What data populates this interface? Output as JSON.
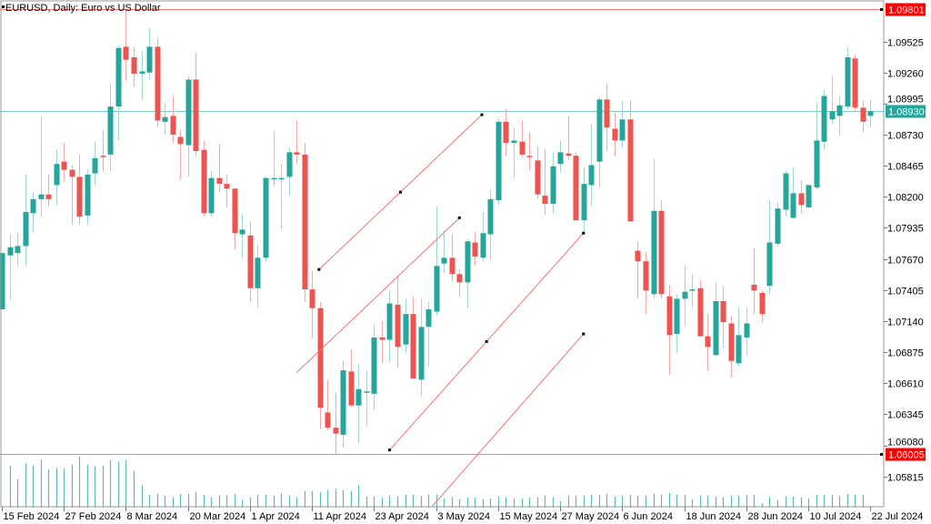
{
  "header": {
    "title": "EURUSD, Daily:  Euro vs US Dollar"
  },
  "colors": {
    "bull": "#26a69a",
    "bear": "#ef5350",
    "bull_wick": "#9fd8d2",
    "bear_wick": "#f7a9a8",
    "level_line": "#ff5b5b",
    "level_label": "#ff0000",
    "bid_line": "#7fd3cb",
    "bid_label": "#26a69a",
    "trendline": "#ff7070",
    "volume": "#26a69a"
  },
  "chart_data": {
    "type": "candlestick",
    "title": "EURUSD, Daily:  Euro vs US Dollar",
    "ylim": [
      1.0555,
      1.0993
    ],
    "y_ticks": [
      "1.09525",
      "1.09260",
      "1.08995",
      "1.08730",
      "1.08465",
      "1.08200",
      "1.07935",
      "1.07670",
      "1.07405",
      "1.07140",
      "1.06875",
      "1.06610",
      "1.06345",
      "1.06080",
      "1.05815"
    ],
    "y_tick_values": [
      1.09525,
      1.0926,
      1.08995,
      1.0873,
      1.08465,
      1.082,
      1.07935,
      1.0767,
      1.07405,
      1.0714,
      1.06875,
      1.0661,
      1.06345,
      1.0608,
      1.05815
    ],
    "x_ticks": [
      {
        "index": 0,
        "label": "15 Feb 2024"
      },
      {
        "index": 8,
        "label": "27 Feb 2024"
      },
      {
        "index": 16,
        "label": "8 Mar 2024"
      },
      {
        "index": 24,
        "label": "20 Mar 2024"
      },
      {
        "index": 32,
        "label": "1 Apr 2024"
      },
      {
        "index": 40,
        "label": "11 Apr 2024"
      },
      {
        "index": 48,
        "label": "23 Apr 2024"
      },
      {
        "index": 56,
        "label": "3 May 2024"
      },
      {
        "index": 64,
        "label": "15 May 2024"
      },
      {
        "index": 72,
        "label": "27 May 2024"
      },
      {
        "index": 80,
        "label": "6 Jun 2024"
      },
      {
        "index": 88,
        "label": "18 Jun 2024"
      },
      {
        "index": 96,
        "label": "28 Jun 2024"
      },
      {
        "index": 104,
        "label": "10 Jul 2024"
      },
      {
        "index": 112,
        "label": "22 Jul 2024"
      }
    ],
    "levels": [
      {
        "name": "resistance",
        "price": 1.09801,
        "label": "1.09801",
        "style": "level"
      },
      {
        "name": "support",
        "price": 1.06005,
        "label": "1.06005",
        "style": "level"
      },
      {
        "name": "bid",
        "price": 1.0893,
        "label": "1.08930",
        "style": "bid"
      }
    ],
    "trendlines": [
      {
        "i1": 40.9,
        "p1": 1.0758,
        "i2": 61.9,
        "p2": 1.089,
        "dots": [
          0,
          0.5,
          1
        ]
      },
      {
        "i1": 38.0,
        "p1": 1.067,
        "i2": 59.0,
        "p2": 1.0802,
        "dots": [
          1
        ]
      },
      {
        "i1": 50.0,
        "p1": 1.0604,
        "i2": 75.0,
        "p2": 1.0789,
        "dots": [
          0,
          0.5,
          1
        ]
      },
      {
        "i1": 55.5,
        "p1": 1.0556,
        "i2": 75.0,
        "p2": 1.0703,
        "dots": [
          1
        ]
      }
    ],
    "ohlc": [
      [
        1.0724,
        1.0772,
        1.0724,
        1.0772
      ],
      [
        1.077,
        1.0788,
        1.0732,
        1.0777
      ],
      [
        1.0772,
        1.0789,
        1.0761,
        1.0778
      ],
      [
        1.0778,
        1.0839,
        1.0761,
        1.0807
      ],
      [
        1.0806,
        1.0824,
        1.079,
        1.0818
      ],
      [
        1.0818,
        1.0889,
        1.0803,
        1.0822
      ],
      [
        1.0822,
        1.0839,
        1.0812,
        1.0818
      ],
      [
        1.083,
        1.086,
        1.0813,
        1.0848
      ],
      [
        1.085,
        1.0866,
        1.0833,
        1.0843
      ],
      [
        1.0843,
        1.0847,
        1.0796,
        1.0837
      ],
      [
        1.0837,
        1.0856,
        1.0796,
        1.0803
      ],
      [
        1.0804,
        1.0843,
        1.0796,
        1.0839
      ],
      [
        1.084,
        1.0867,
        1.083,
        1.0853
      ],
      [
        1.0855,
        1.0877,
        1.0841,
        1.0854
      ],
      [
        1.0856,
        1.0916,
        1.0842,
        1.0897
      ],
      [
        1.0897,
        1.0949,
        1.0868,
        1.0947
      ],
      [
        1.0948,
        1.0979,
        1.0919,
        1.0937
      ],
      [
        1.0939,
        1.0948,
        1.0914,
        1.0925
      ],
      [
        1.0925,
        1.0944,
        1.0903,
        1.0927
      ],
      [
        1.0926,
        1.0964,
        1.092,
        1.0948
      ],
      [
        1.0948,
        1.0955,
        1.0879,
        1.0885
      ],
      [
        1.0884,
        1.09,
        1.0873,
        1.0888
      ],
      [
        1.0889,
        1.0906,
        1.0866,
        1.0873
      ],
      [
        1.0871,
        1.0877,
        1.0835,
        1.0865
      ],
      [
        1.0864,
        1.0923,
        1.0837,
        1.092
      ],
      [
        1.092,
        1.0943,
        1.0854,
        1.0859
      ],
      [
        1.086,
        1.0868,
        1.0803,
        1.0806
      ],
      [
        1.0806,
        1.0842,
        1.0803,
        1.0836
      ],
      [
        1.0836,
        1.0865,
        1.0824,
        1.0831
      ],
      [
        1.0831,
        1.0839,
        1.0811,
        1.0827
      ],
      [
        1.0827,
        1.0827,
        1.0775,
        1.0789
      ],
      [
        1.0788,
        1.0805,
        1.0768,
        1.0792
      ],
      [
        1.0787,
        1.0799,
        1.073,
        1.0742
      ],
      [
        1.0742,
        1.0779,
        1.0725,
        1.0768
      ],
      [
        1.0768,
        1.0837,
        1.0765,
        1.0836
      ],
      [
        1.0835,
        1.0876,
        1.0829,
        1.0836
      ],
      [
        1.0836,
        1.0848,
        1.0792,
        1.0836
      ],
      [
        1.0837,
        1.0862,
        1.0821,
        1.0858
      ],
      [
        1.0858,
        1.0885,
        1.0848,
        1.0856
      ],
      [
        1.0856,
        1.0866,
        1.073,
        1.0741
      ],
      [
        1.0741,
        1.0757,
        1.0699,
        1.0725
      ],
      [
        1.0725,
        1.073,
        1.0622,
        1.064
      ],
      [
        1.0636,
        1.0664,
        1.0621,
        1.0623
      ],
      [
        1.0623,
        1.0653,
        1.06,
        1.0618
      ],
      [
        1.0617,
        1.068,
        1.0606,
        1.0672
      ],
      [
        1.0671,
        1.069,
        1.0641,
        1.0642
      ],
      [
        1.0642,
        1.0678,
        1.061,
        1.0656
      ],
      [
        1.0653,
        1.0671,
        1.0624,
        1.0654
      ],
      [
        1.0652,
        1.0711,
        1.0638,
        1.07
      ],
      [
        1.07,
        1.0714,
        1.0678,
        1.0698
      ],
      [
        1.0698,
        1.074,
        1.0679,
        1.0729
      ],
      [
        1.0728,
        1.0753,
        1.0674,
        1.0692
      ],
      [
        1.0694,
        1.0733,
        1.0687,
        1.072
      ],
      [
        1.072,
        1.0735,
        1.0664,
        1.0665
      ],
      [
        1.0664,
        1.0733,
        1.065,
        1.0709
      ],
      [
        1.0709,
        1.073,
        1.0675,
        1.0724
      ],
      [
        1.0722,
        1.0812,
        1.0719,
        1.0761
      ],
      [
        1.0763,
        1.0791,
        1.0755,
        1.0768
      ],
      [
        1.0768,
        1.0788,
        1.0748,
        1.0754
      ],
      [
        1.0754,
        1.0758,
        1.0735,
        1.0747
      ],
      [
        1.0747,
        1.0784,
        1.0725,
        1.0782
      ],
      [
        1.0781,
        1.079,
        1.0761,
        1.0769
      ],
      [
        1.0768,
        1.0807,
        1.0765,
        1.0789
      ],
      [
        1.0788,
        1.0826,
        1.0766,
        1.0818
      ],
      [
        1.0817,
        1.0886,
        1.0813,
        1.0884
      ],
      [
        1.0884,
        1.0895,
        1.0855,
        1.0866
      ],
      [
        1.0866,
        1.0879,
        1.0836,
        1.0868
      ],
      [
        1.0867,
        1.0885,
        1.0854,
        1.0856
      ],
      [
        1.0855,
        1.0875,
        1.0843,
        1.0854
      ],
      [
        1.0851,
        1.0863,
        1.0818,
        1.0822
      ],
      [
        1.0821,
        1.0861,
        1.0805,
        1.0814
      ],
      [
        1.0814,
        1.0858,
        1.0806,
        1.0846
      ],
      [
        1.0848,
        1.0868,
        1.0841,
        1.0858
      ],
      [
        1.0857,
        1.0889,
        1.0851,
        1.0855
      ],
      [
        1.0855,
        1.0858,
        1.0799,
        1.08
      ],
      [
        1.08,
        1.0845,
        1.0789,
        1.0831
      ],
      [
        1.083,
        1.0882,
        1.0812,
        1.0847
      ],
      [
        1.085,
        1.0905,
        1.0828,
        1.0903
      ],
      [
        1.0903,
        1.0916,
        1.0859,
        1.0879
      ],
      [
        1.0878,
        1.0892,
        1.0855,
        1.0868
      ],
      [
        1.0868,
        1.0902,
        1.0862,
        1.0886
      ],
      [
        1.0886,
        1.0902,
        1.0799,
        1.0799
      ],
      [
        1.0774,
        1.0782,
        1.0733,
        1.0765
      ],
      [
        1.0765,
        1.0773,
        1.072,
        1.074
      ],
      [
        1.0737,
        1.0852,
        1.0733,
        1.0808
      ],
      [
        1.0808,
        1.0817,
        1.0733,
        1.0737
      ],
      [
        1.0735,
        1.0745,
        1.0668,
        1.0702
      ],
      [
        1.0703,
        1.0737,
        1.0687,
        1.0733
      ],
      [
        1.0733,
        1.0761,
        1.071,
        1.0739
      ],
      [
        1.074,
        1.0754,
        1.0726,
        1.0741
      ],
      [
        1.0742,
        1.0749,
        1.0701,
        1.0701
      ],
      [
        1.0701,
        1.072,
        1.0671,
        1.0692
      ],
      [
        1.0685,
        1.0747,
        1.0684,
        1.0731
      ],
      [
        1.0731,
        1.0744,
        1.0691,
        1.0713
      ],
      [
        1.0712,
        1.0718,
        1.0666,
        1.068
      ],
      [
        1.0678,
        1.0726,
        1.0675,
        1.0702
      ],
      [
        1.07,
        1.0725,
        1.0685,
        1.0712
      ],
      [
        1.0745,
        1.0776,
        1.072,
        1.074
      ],
      [
        1.0738,
        1.074,
        1.0713,
        1.072
      ],
      [
        1.0744,
        1.0817,
        1.0737,
        1.0781
      ],
      [
        1.078,
        1.0815,
        1.0778,
        1.081
      ],
      [
        1.0809,
        1.0842,
        1.0803,
        1.084
      ],
      [
        1.0802,
        1.0845,
        1.0801,
        1.0823
      ],
      [
        1.0823,
        1.0834,
        1.0806,
        1.0813
      ],
      [
        1.0811,
        1.083,
        1.081,
        1.083
      ],
      [
        1.0828,
        1.09,
        1.0826,
        1.0868
      ],
      [
        1.0867,
        1.0911,
        1.086,
        1.0906
      ],
      [
        1.0886,
        1.0923,
        1.0882,
        1.0893
      ],
      [
        1.0889,
        1.0906,
        1.0872,
        1.0898
      ],
      [
        1.0897,
        1.0948,
        1.0895,
        1.0939
      ],
      [
        1.0938,
        1.0941,
        1.0893,
        1.0896
      ],
      [
        1.0896,
        1.0902,
        1.0875,
        1.0884
      ],
      [
        1.0889,
        1.0903,
        1.088,
        1.0893
      ]
    ],
    "volume_relative": [
      0,
      138,
      93,
      145,
      139,
      158,
      127,
      131,
      130,
      142,
      168,
      141,
      136,
      139,
      157,
      152,
      157,
      121,
      73,
      42,
      46,
      39,
      35,
      45,
      45,
      51,
      42,
      34,
      40,
      40,
      45,
      25,
      34,
      43,
      43,
      39,
      48,
      40,
      35,
      55,
      55,
      51,
      58,
      62,
      58,
      55,
      74,
      37,
      37,
      34,
      40,
      37,
      43,
      43,
      39,
      43,
      43,
      30,
      35,
      28,
      34,
      34,
      28,
      30,
      37,
      35,
      30,
      30,
      34,
      34,
      40,
      34,
      21,
      39,
      39,
      40,
      43,
      42,
      45,
      37,
      39,
      43,
      39,
      39,
      46,
      43,
      48,
      43,
      42,
      27,
      40,
      40,
      37,
      35,
      39,
      39,
      43,
      43,
      15,
      35,
      25,
      37,
      37,
      33,
      31,
      42,
      42,
      42,
      39,
      45,
      43,
      43,
      5
    ]
  }
}
